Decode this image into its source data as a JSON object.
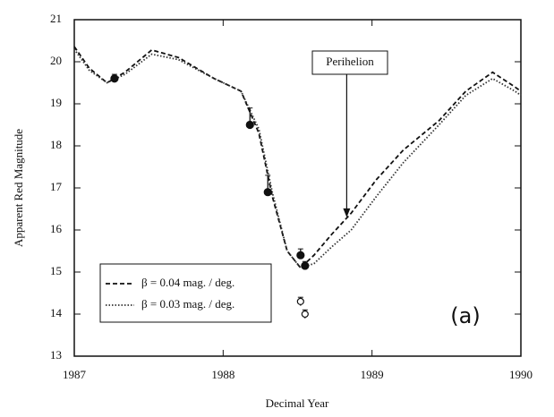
{
  "chart_data": {
    "type": "line",
    "xlabel": "Decimal Year",
    "ylabel": "Apparent Red Magnitude",
    "xlim": [
      1987,
      1990
    ],
    "xticks": [
      1987,
      1988,
      1989,
      1990
    ],
    "ylim": [
      13,
      21
    ],
    "yticks": [
      13,
      14,
      15,
      16,
      17,
      18,
      19,
      20,
      21
    ],
    "x": [
      1987.0,
      1987.1,
      1987.22,
      1987.34,
      1987.52,
      1987.7,
      1987.94,
      1988.12,
      1988.24,
      1988.33,
      1988.43,
      1988.52,
      1988.61,
      1988.73,
      1988.86,
      1989.03,
      1989.21,
      1989.45,
      1989.63,
      1989.81,
      1989.96,
      1990.0
    ],
    "series": [
      {
        "name": "β = 0.04 mag. / deg.",
        "color": "#111111",
        "dash": "5,3",
        "values": [
          20.36,
          19.85,
          19.5,
          19.75,
          20.28,
          20.1,
          19.6,
          19.3,
          18.3,
          16.8,
          15.5,
          15.1,
          15.4,
          15.9,
          16.4,
          17.2,
          17.9,
          18.6,
          19.3,
          19.75,
          19.4,
          19.3
        ]
      },
      {
        "name": "β = 0.03 mag. / deg.",
        "color": "#333333",
        "dash": "1.5,2",
        "values": [
          20.3,
          19.8,
          19.5,
          19.7,
          20.18,
          20.05,
          19.6,
          19.3,
          18.4,
          16.9,
          15.5,
          15.1,
          15.2,
          15.6,
          16.0,
          16.8,
          17.6,
          18.5,
          19.2,
          19.6,
          19.3,
          19.2
        ]
      }
    ],
    "points": {
      "x": [
        1987.27,
        1988.18,
        1988.3,
        1988.52,
        1988.55
      ],
      "y": [
        19.6,
        18.5,
        16.9,
        15.4,
        15.15
      ],
      "errors": [
        0.1,
        0.4,
        0.4,
        0.15,
        0.1
      ]
    },
    "open_points": {
      "x": [
        1988.52,
        1988.55
      ],
      "y": [
        14.3,
        14.0
      ],
      "errors": [
        0.1,
        0.1
      ]
    },
    "annotation": {
      "text": "Perihelion",
      "x": 1988.83,
      "y": 16.3
    },
    "panel_label": "(a)"
  }
}
